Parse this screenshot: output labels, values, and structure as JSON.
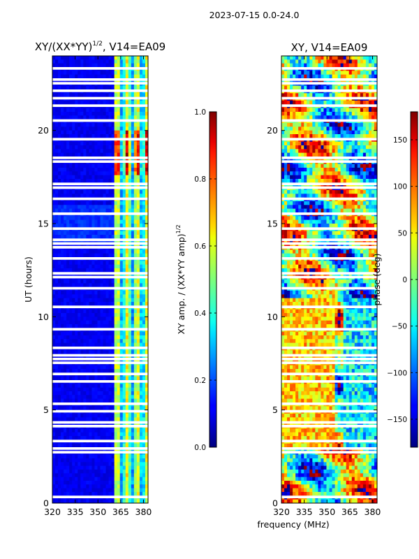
{
  "figure": {
    "suptitle": "2023-07-15 0.0-24.0",
    "shared_xlabel": "frequency (MHz)"
  },
  "chart_data": [
    {
      "type": "heatmap",
      "id": "amplitude",
      "title": "XY/(XX*YY)",
      "title_exp": "1/2",
      "title_suffix": ", V14=EA09",
      "xlabel": "",
      "ylabel": "UT (hours)",
      "xlim": [
        320,
        383
      ],
      "ylim": [
        0,
        24
      ],
      "xticks": [
        320,
        335,
        350,
        365,
        380
      ],
      "yticks": [
        0,
        5,
        10,
        15,
        20
      ],
      "colormap": "jet",
      "colorbar": {
        "label": "XY amp. / (XX*YY amp)",
        "label_exp": "1/2",
        "vmin": 0.0,
        "vmax": 1.0,
        "ticks": [
          "0.0",
          "0.2",
          "0.4",
          "0.6",
          "0.8",
          "1.0"
        ],
        "tick_values": [
          0.0,
          0.2,
          0.4,
          0.6,
          0.8,
          1.0
        ]
      },
      "blank_rows_ut": [
        0.3,
        0.45,
        2.8,
        2.95,
        3.3,
        3.5,
        4.2,
        4.5,
        5.1,
        5.5,
        6.6,
        7.0,
        7.6,
        7.9,
        8.1,
        8.4,
        9.3,
        10.55,
        11.6,
        12.2,
        12.45,
        13.3,
        13.9,
        14.0,
        14.15,
        14.9,
        15.7,
        16.4,
        17.0,
        17.2,
        18.5,
        18.7,
        19.6,
        20.6,
        21.3,
        21.9,
        22.1,
        22.6,
        22.9,
        23.4
      ]
    },
    {
      "type": "heatmap",
      "id": "phase",
      "title": "XY, V14=EA09",
      "xlabel": "frequency (MHz)",
      "ylabel": "",
      "xlim": [
        320,
        383
      ],
      "ylim": [
        0,
        24
      ],
      "xticks": [
        320,
        335,
        350,
        365,
        380
      ],
      "yticks": [
        0,
        5,
        10,
        15,
        20
      ],
      "colormap": "jet",
      "colorbar": {
        "label": "phase (deg)",
        "vmin": -180,
        "vmax": 180,
        "ticks": [
          "−150",
          "−100",
          "−50",
          "0",
          "50",
          "100",
          "150"
        ],
        "tick_values": [
          -150,
          -100,
          -50,
          0,
          50,
          100,
          150
        ]
      },
      "blank_rows_ut": [
        0.3,
        0.45,
        2.8,
        2.95,
        3.3,
        3.5,
        4.2,
        4.5,
        5.1,
        5.5,
        6.6,
        7.0,
        7.6,
        7.9,
        8.1,
        8.4,
        9.3,
        10.55,
        11.6,
        12.2,
        12.45,
        13.3,
        13.9,
        14.0,
        14.15,
        14.9,
        15.7,
        16.4,
        17.0,
        17.2,
        18.5,
        18.7,
        19.6,
        20.6,
        21.3,
        21.9,
        22.1,
        22.6,
        22.9,
        23.4
      ]
    }
  ]
}
